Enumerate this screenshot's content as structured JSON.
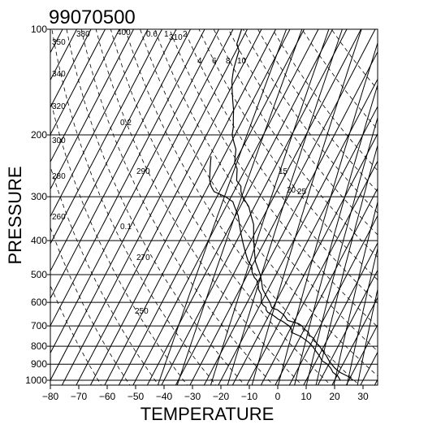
{
  "chart_data": {
    "type": "line",
    "title": "99070500",
    "xlabel": "TEMPERATURE",
    "ylabel": "PRESSURE",
    "x_ticks": [
      "−80",
      "−70",
      "−60",
      "−50",
      "−40",
      "−30",
      "−20",
      "−10",
      "0",
      "10",
      "20",
      "30"
    ],
    "y_ticks": [
      "100",
      "200",
      "300",
      "400",
      "500",
      "600",
      "700",
      "800",
      "900",
      "1000"
    ],
    "xlim": [
      -80,
      35
    ],
    "ylim": [
      1050,
      100
    ],
    "y_scale": "log",
    "skew": "isotherms skewed to the right with height",
    "grid": true,
    "background_lines": {
      "dry_adiabats_K": [
        "250",
        "260",
        "270",
        "280",
        "290",
        "300",
        "310",
        "320",
        "340",
        "350",
        "380",
        "400"
      ],
      "mixing_ratio_g_per_kg": [
        "0.1",
        "0.2",
        "0.6",
        "1",
        "2",
        "4",
        "6",
        "8",
        "10",
        "15",
        "20",
        "25"
      ]
    },
    "series": [
      {
        "values": [
          [
            1000,
            26.5
          ],
          [
            975,
            24
          ],
          [
            950,
            20.5
          ],
          [
            925,
            18
          ],
          [
            900,
            16
          ],
          [
            880,
            14.5
          ],
          [
            850,
            12.5
          ],
          [
            820,
            10
          ],
          [
            800,
            8.5
          ],
          [
            780,
            6.5
          ],
          [
            760,
            5
          ],
          [
            745,
            3
          ],
          [
            730,
            2
          ],
          [
            715,
            0
          ],
          [
            700,
            -1.5
          ],
          [
            690,
            -3
          ],
          [
            675,
            -7.5
          ],
          [
            660,
            -9
          ],
          [
            650,
            -10
          ],
          [
            640,
            -11.5
          ],
          [
            630,
            -13
          ],
          [
            625,
            -14.5
          ],
          [
            620,
            -15.5
          ],
          [
            600,
            -17
          ],
          [
            580,
            -19
          ],
          [
            565,
            -20.5
          ],
          [
            550,
            -22
          ],
          [
            535,
            -23
          ],
          [
            520,
            -24
          ],
          [
            500,
            -25.5
          ],
          [
            480,
            -27.5
          ],
          [
            460,
            -29.5
          ],
          [
            440,
            -31
          ],
          [
            420,
            -32.5
          ],
          [
            400,
            -34
          ],
          [
            380,
            -35.5
          ],
          [
            360,
            -37
          ],
          [
            340,
            -39.5
          ],
          [
            320,
            -42
          ],
          [
            300,
            -46
          ],
          [
            290,
            -47.5
          ],
          [
            280,
            -48.5
          ],
          [
            270,
            -51
          ],
          [
            260,
            -52
          ],
          [
            250,
            -53
          ],
          [
            240,
            -55
          ],
          [
            230,
            -56
          ],
          [
            220,
            -57
          ],
          [
            210,
            -59
          ],
          [
            200,
            -61
          ],
          [
            190,
            -62
          ],
          [
            180,
            -63.5
          ],
          [
            170,
            -65
          ],
          [
            160,
            -67
          ],
          [
            150,
            -69
          ],
          [
            140,
            -71
          ],
          [
            130,
            -72.5
          ],
          [
            120,
            -73.5
          ],
          [
            115,
            -74
          ],
          [
            110,
            -76
          ],
          [
            105,
            -76.5
          ],
          [
            100,
            -77
          ]
        ]
      },
      {
        "values": [
          [
            1000,
            22
          ],
          [
            975,
            20.5
          ],
          [
            950,
            18
          ],
          [
            925,
            16.5
          ],
          [
            900,
            14.5
          ],
          [
            880,
            12
          ],
          [
            850,
            10
          ],
          [
            825,
            8
          ],
          [
            800,
            6
          ],
          [
            780,
            4
          ],
          [
            765,
            2
          ],
          [
            750,
            0
          ],
          [
            740,
            -2
          ],
          [
            730,
            -4
          ],
          [
            715,
            -4.5
          ],
          [
            700,
            -6
          ],
          [
            690,
            -7.5
          ],
          [
            680,
            -9
          ],
          [
            670,
            -11
          ],
          [
            660,
            -12.5
          ],
          [
            650,
            -14
          ],
          [
            640,
            -16
          ],
          [
            630,
            -17
          ],
          [
            620,
            -17.5
          ],
          [
            610,
            -19
          ],
          [
            600,
            -20
          ],
          [
            590,
            -20.5
          ],
          [
            580,
            -21
          ],
          [
            570,
            -21.5
          ],
          [
            560,
            -22.5
          ],
          [
            550,
            -23.5
          ],
          [
            540,
            -24
          ],
          [
            530,
            -25
          ],
          [
            520,
            -25.5
          ],
          [
            510,
            -27
          ],
          [
            500,
            -28
          ],
          [
            490,
            -29
          ],
          [
            480,
            -29.5
          ],
          [
            470,
            -30.5
          ],
          [
            460,
            -32
          ],
          [
            450,
            -33
          ],
          [
            440,
            -34
          ],
          [
            430,
            -35
          ],
          [
            420,
            -36
          ],
          [
            410,
            -37
          ],
          [
            400,
            -38
          ],
          [
            390,
            -39
          ],
          [
            380,
            -40
          ],
          [
            370,
            -41
          ],
          [
            360,
            -42
          ],
          [
            350,
            -43
          ],
          [
            340,
            -44
          ],
          [
            330,
            -45.5
          ],
          [
            320,
            -47
          ],
          [
            310,
            -48.5
          ],
          [
            300,
            -52
          ],
          [
            290,
            -57
          ],
          [
            280,
            -59
          ],
          [
            270,
            -60.5
          ],
          [
            260,
            -61.5
          ],
          [
            250,
            -62.5
          ],
          [
            240,
            -63.5
          ],
          [
            230,
            -64.5
          ]
        ]
      }
    ]
  }
}
